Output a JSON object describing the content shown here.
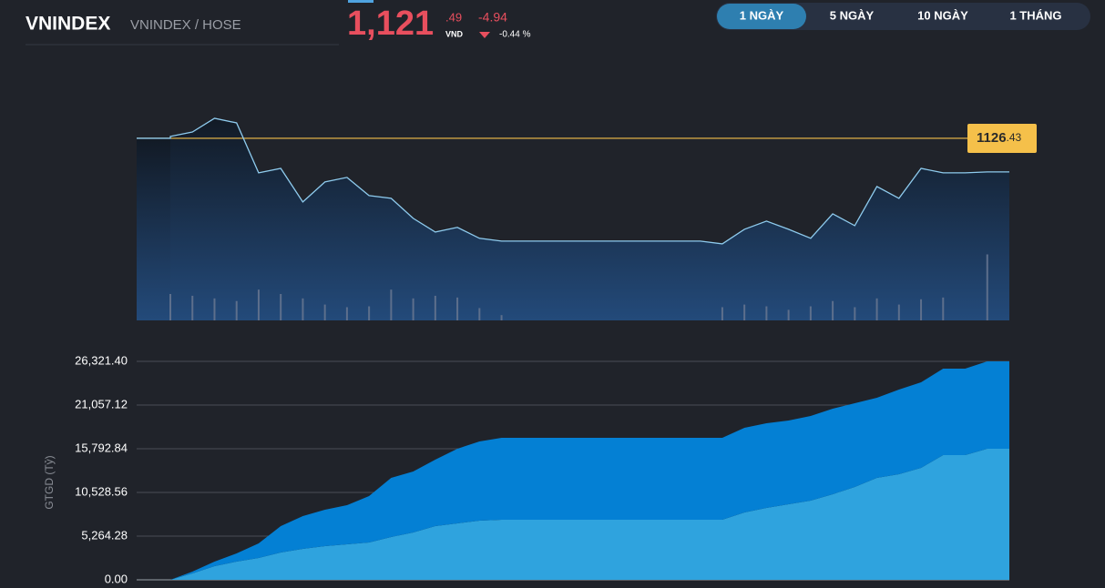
{
  "header": {
    "symbol": "VNINDEX",
    "exchange": "VNINDEX / HOSE",
    "price_int": "1,121",
    "price_dec": ".49",
    "currency": "VND",
    "change": "-4.94",
    "change_pct": "-0.44 %"
  },
  "tabs": {
    "items": [
      "1 NGÀY",
      "5 NGÀY",
      "10 NGÀY",
      "1 THÁNG"
    ],
    "active": 0
  },
  "chart_data": [
    {
      "type": "line",
      "color": "#8ecbee",
      "ylim": [
        1099.7,
        1130.7
      ],
      "values": [
        1126.7,
        1127.36,
        1129.37,
        1128.7,
        1121.36,
        1122.02,
        1117.08,
        1120.02,
        1120.69,
        1118.02,
        1117.62,
        1114.68,
        1112.68,
        1113.35,
        1111.75,
        1111.34,
        1111.34,
        1111.34,
        1111.34,
        1111.34,
        1111.34,
        1111.34,
        1111.34,
        1111.34,
        1111.34,
        1110.94,
        1113.08,
        1114.28,
        1113.08,
        1111.75,
        1115.35,
        1113.61,
        1119.35,
        1117.62,
        1122.02,
        1121.36,
        1121.36,
        1121.49,
        1121.49
      ],
      "reference": {
        "value": 1126.43,
        "label_int": "1126",
        "label_dec": ".43",
        "color": "#f5c04a"
      },
      "volume": {
        "color": "#5d6f8c",
        "y2lim": [
          0,
          240
        ],
        "values": [
          30,
          28,
          25,
          22,
          35,
          30,
          25,
          18,
          15,
          16,
          35,
          25,
          28,
          26,
          14,
          6,
          0,
          0,
          0,
          0,
          0,
          0,
          0,
          0,
          0,
          15,
          18,
          16,
          12,
          16,
          22,
          15,
          25,
          18,
          24,
          26,
          0,
          75,
          0
        ]
      }
    },
    {
      "type": "area",
      "stacked": true,
      "ylabel": "GTGD (Tỷ)",
      "grid": true,
      "ylim": [
        0,
        26321.4
      ],
      "yticks": [
        {
          "value": 0,
          "label": "0.00"
        },
        {
          "value": 5264.28,
          "label": "5,264.28"
        },
        {
          "value": 10528.56,
          "label": "10,528.56"
        },
        {
          "value": 15792.84,
          "label": "15,792.84"
        },
        {
          "value": 21057.12,
          "label": "21,057.12"
        },
        {
          "value": 26321.4,
          "label": "26,321.40"
        }
      ],
      "series": [
        {
          "color": "#2fa3de",
          "values": [
            0,
            768,
            1645,
            2193,
            2632,
            3290,
            3729,
            4058,
            4277,
            4496,
            5154,
            5702,
            6470,
            6799,
            7128,
            7238,
            7238,
            7238,
            7238,
            7238,
            7238,
            7238,
            7238,
            7238,
            7238,
            7238,
            8115,
            8664,
            9102,
            9541,
            10309,
            11186,
            12283,
            12722,
            13489,
            15025,
            15025,
            15792,
            15792
          ]
        },
        {
          "color": "#0480d4",
          "values": [
            0,
            219,
            548,
            987,
            1755,
            3180,
            3948,
            4387,
            4716,
            5593,
            7129,
            7348,
            8006,
            8993,
            9541,
            9870,
            9870,
            9870,
            9870,
            9870,
            9870,
            9870,
            9870,
            9870,
            9870,
            9870,
            10199,
            10199,
            10090,
            10199,
            10309,
            10090,
            9651,
            10199,
            10309,
            10419,
            10419,
            10528,
            10528
          ]
        }
      ]
    }
  ]
}
